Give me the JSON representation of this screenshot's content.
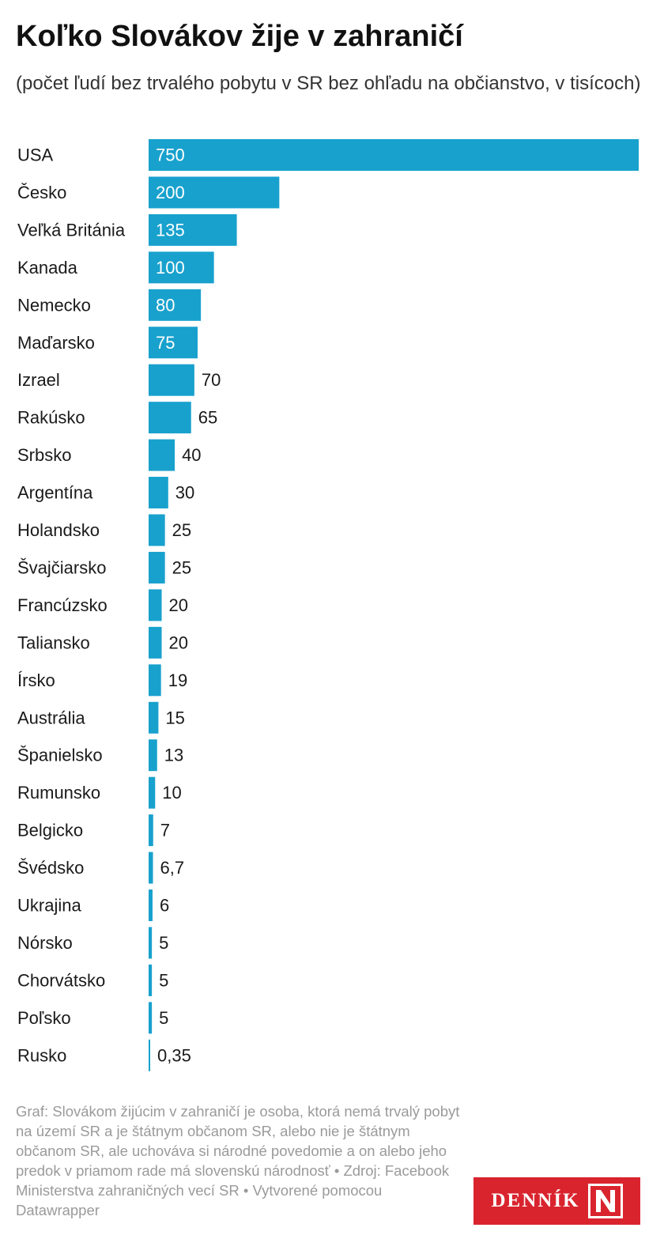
{
  "header": {
    "title": "Koľko Slovákov žije v zahraničí",
    "subtitle": "(počet ľudí bez trvalého pobytu v SR bez ohľadu na občianstvo, v tisícoch)"
  },
  "chart_data": {
    "type": "bar",
    "orientation": "horizontal",
    "categories": [
      "USA",
      "Česko",
      "Veľká Británia",
      "Kanada",
      "Nemecko",
      "Maďarsko",
      "Izrael",
      "Rakúsko",
      "Srbsko",
      "Argentína",
      "Holandsko",
      "Švajčiarsko",
      "Francúzsko",
      "Taliansko",
      "Írsko",
      "Austrália",
      "Španielsko",
      "Rumunsko",
      "Belgicko",
      "Švédsko",
      "Ukrajina",
      "Nórsko",
      "Chorvátsko",
      "Poľsko",
      "Rusko"
    ],
    "values": [
      750,
      200,
      135,
      100,
      80,
      75,
      70,
      65,
      40,
      30,
      25,
      25,
      20,
      20,
      19,
      15,
      13,
      10,
      7,
      6.7,
      6,
      5,
      5,
      5,
      0.35
    ],
    "labels": [
      "750",
      "200",
      "135",
      "100",
      "80",
      "75",
      "70",
      "65",
      "40",
      "30",
      "25",
      "25",
      "20",
      "20",
      "19",
      "15",
      "13",
      "10",
      "7",
      "6,7",
      "6",
      "5",
      "5",
      "5",
      "0,35"
    ],
    "xlim": [
      0,
      750
    ],
    "grid": false,
    "bar_color": "#18a1cd"
  },
  "footer": {
    "notes": "Graf: Slovákom žijúcim v zahraničí je osoba, ktorá nemá trvalý pobyt na území SR a je štátnym občanom SR, alebo nie je štátnym občanom SR, ale uchováva si národné povedomie a on alebo jeho predok v priamom rade má slovenskú národnosť • Zdroj: Facebook Ministerstva zahraničných vecí SR  • Vytvorené pomocou Datawrapper",
    "logo_text": "DENNÍK",
    "logo_color": "#d9242e"
  }
}
